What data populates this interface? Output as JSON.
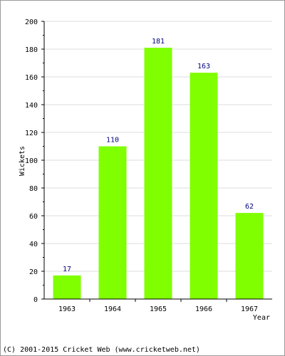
{
  "chart_data": {
    "type": "bar",
    "categories": [
      "1963",
      "1964",
      "1965",
      "1966",
      "1967"
    ],
    "values": [
      17,
      110,
      181,
      163,
      62
    ],
    "title": "",
    "xlabel": "Year",
    "ylabel": "Wickets",
    "ylim": [
      0,
      200
    ],
    "yticks": [
      "0",
      "20",
      "40",
      "60",
      "80",
      "100",
      "120",
      "140",
      "160",
      "180",
      "200"
    ],
    "grid": true,
    "data_labels": true,
    "bar_color": "#80ff00",
    "label_color": "#000080",
    "grid_color": "#dcdcdc"
  },
  "footer": {
    "copyright": "(C) 2001-2015 Cricket Web (www.cricketweb.net)"
  }
}
